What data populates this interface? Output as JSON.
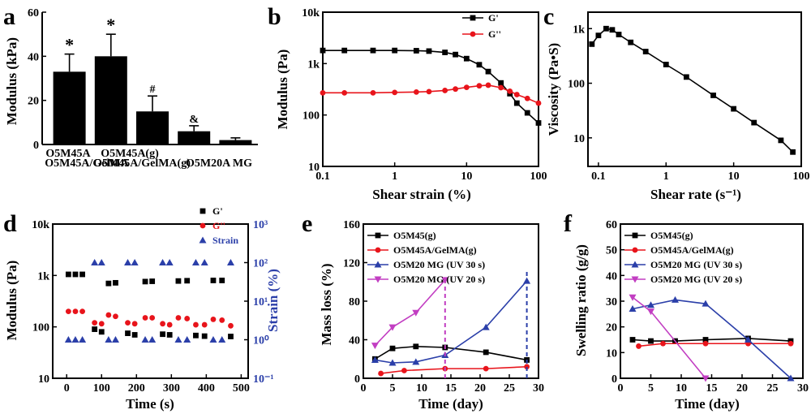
{
  "panels": {
    "a": {
      "label": "a",
      "ylabel": "Modulus (kPa)"
    },
    "b": {
      "label": "b",
      "ylabel": "Modulus (Pa)",
      "xlabel": "Shear strain (%)"
    },
    "c": {
      "label": "c",
      "ylabel": "Viscosity (Pa•S)",
      "xlabel": "Shear rate (s⁻¹)"
    },
    "d": {
      "label": "d",
      "ylabel": "Modulus (Pa)",
      "y2label": "Strain (%)",
      "xlabel": "Time (s)"
    },
    "e": {
      "label": "e",
      "ylabel": "Mass loss (%)",
      "xlabel": "Time (day)"
    },
    "f": {
      "label": "f",
      "ylabel": "Swelling ratio (g/g)",
      "xlabel": "Time (day)"
    }
  },
  "chart_data": [
    {
      "panel": "a",
      "type": "bar",
      "categories": [
        "O5M45A",
        "O5M45A/GelMA",
        "O5M45A(g)",
        "O5M45A/GelMA(g)",
        "O5M20A MG"
      ],
      "values": [
        33,
        40,
        15,
        6,
        2
      ],
      "errors": [
        8,
        10,
        7,
        2.5,
        1
      ],
      "annotations": [
        "*",
        "*",
        "#",
        "&",
        ""
      ],
      "ylim": [
        0,
        60
      ],
      "yticks": [
        0,
        20,
        40,
        60
      ],
      "ylabel": "Modulus (kPa)",
      "color": "#000000"
    },
    {
      "panel": "b",
      "type": "line",
      "xscale": "log",
      "yscale": "log",
      "xlim": [
        0.1,
        100
      ],
      "ylim": [
        10,
        10000
      ],
      "xticks": [
        "0.1",
        "1",
        "10",
        "100"
      ],
      "yticks": [
        "10",
        "100",
        "1k",
        "10k"
      ],
      "xlabel": "Shear strain (%)",
      "ylabel": "Modulus (Pa)",
      "legend": "top-right",
      "series": [
        {
          "name": "G'",
          "color": "#000000",
          "marker": "square",
          "x": [
            0.1,
            0.2,
            0.5,
            1,
            2,
            3,
            5,
            7,
            10,
            15,
            20,
            30,
            40,
            50,
            70,
            100
          ],
          "y": [
            1800,
            1800,
            1800,
            1800,
            1780,
            1750,
            1650,
            1500,
            1250,
            950,
            700,
            420,
            260,
            170,
            110,
            70
          ]
        },
        {
          "name": "G''",
          "color": "#e8141b",
          "marker": "circle",
          "x": [
            0.1,
            0.2,
            0.5,
            1,
            2,
            3,
            5,
            7,
            10,
            15,
            20,
            30,
            40,
            50,
            70,
            100
          ],
          "y": [
            270,
            270,
            270,
            275,
            280,
            285,
            300,
            320,
            345,
            370,
            380,
            340,
            290,
            250,
            210,
            170
          ]
        }
      ]
    },
    {
      "panel": "c",
      "type": "line",
      "xscale": "log",
      "yscale": "log",
      "xlim": [
        0.07,
        100
      ],
      "ylim": [
        3,
        2000
      ],
      "xticks": [
        "0.1",
        "1",
        "10",
        "100"
      ],
      "yticks": [
        "10",
        "100",
        "1k"
      ],
      "xlabel": "Shear rate (s⁻¹)",
      "ylabel": "Viscosity (Pa•S)",
      "series": [
        {
          "name": "",
          "color": "#000000",
          "marker": "square",
          "x": [
            0.08,
            0.1,
            0.13,
            0.16,
            0.2,
            0.3,
            0.5,
            1,
            2,
            5,
            10,
            20,
            50,
            75
          ],
          "y": [
            520,
            750,
            1000,
            950,
            780,
            560,
            380,
            220,
            130,
            60,
            34,
            19,
            9,
            5.5
          ]
        }
      ]
    },
    {
      "panel": "d",
      "type": "scatter",
      "yscale": "log",
      "xlim": [
        -40,
        520
      ],
      "ylim": [
        10,
        10000
      ],
      "y2lim": [
        0.1,
        1000
      ],
      "xticks": [
        0,
        100,
        200,
        300,
        400,
        500
      ],
      "yticks": [
        "10",
        "100",
        "1k",
        "10k"
      ],
      "y2ticks": [
        "10⁻¹",
        "10⁰",
        "10¹",
        "10²",
        "10³"
      ],
      "xlabel": "Time (s)",
      "ylabel": "Modulus (Pa)",
      "y2label": "Strain (%)",
      "legend": "top-right",
      "series": [
        {
          "name": "G'",
          "color": "#000000",
          "marker": "square",
          "x": [
            5,
            25,
            45,
            80,
            100,
            120,
            140,
            175,
            195,
            225,
            245,
            275,
            295,
            320,
            345,
            370,
            395,
            420,
            445,
            470
          ],
          "y": [
            1050,
            1050,
            1050,
            90,
            80,
            700,
            720,
            75,
            70,
            760,
            770,
            72,
            70,
            780,
            790,
            68,
            66,
            800,
            800,
            65
          ]
        },
        {
          "name": "G''",
          "color": "#e8141b",
          "marker": "circle",
          "x": [
            5,
            25,
            45,
            80,
            100,
            120,
            140,
            175,
            195,
            225,
            245,
            275,
            295,
            320,
            345,
            370,
            395,
            420,
            445,
            470
          ],
          "y": [
            200,
            200,
            200,
            120,
            115,
            170,
            160,
            120,
            115,
            150,
            150,
            115,
            110,
            150,
            145,
            110,
            110,
            140,
            135,
            105
          ]
        },
        {
          "name": "Strain",
          "color": "#2b3fa9",
          "marker": "triangle",
          "axis": "right",
          "x": [
            5,
            25,
            45,
            80,
            100,
            120,
            140,
            175,
            195,
            225,
            245,
            275,
            295,
            320,
            345,
            370,
            395,
            420,
            445,
            470
          ],
          "y": [
            1,
            1,
            1,
            100,
            100,
            1,
            1,
            100,
            100,
            1,
            1,
            100,
            100,
            1,
            1,
            100,
            100,
            1,
            1,
            100
          ]
        }
      ]
    },
    {
      "panel": "e",
      "type": "line",
      "xlim": [
        0,
        30
      ],
      "ylim": [
        0,
        160
      ],
      "xticks": [
        0,
        5,
        10,
        15,
        20,
        25,
        30
      ],
      "yticks": [
        0,
        40,
        80,
        120,
        160
      ],
      "xlabel": "Time (day)",
      "ylabel": "Mass loss (%)",
      "legend": "top-left",
      "series": [
        {
          "name": "O5M45(g)",
          "color": "#000000",
          "marker": "square",
          "x": [
            2,
            5,
            9,
            14,
            21,
            28
          ],
          "y": [
            20,
            31,
            33,
            32,
            27,
            19
          ]
        },
        {
          "name": "O5M45A/GelMA(g)",
          "color": "#e8141b",
          "marker": "circle",
          "x": [
            3,
            7,
            14,
            21,
            28
          ],
          "y": [
            5,
            8,
            10,
            10,
            12
          ]
        },
        {
          "name": "O5M20 MG (UV 30 s)",
          "color": "#2b3fa9",
          "marker": "triangle",
          "x": [
            2,
            5,
            9,
            14,
            21,
            28
          ],
          "y": [
            19,
            16,
            17,
            24,
            53,
            101
          ]
        },
        {
          "name": "O5M20 MG (UV 20 s)",
          "color": "#c23ec2",
          "marker": "triangle-down",
          "x": [
            2,
            5,
            9,
            14
          ],
          "y": [
            34,
            53,
            68,
            102
          ]
        }
      ]
    },
    {
      "panel": "f",
      "type": "line",
      "xlim": [
        0,
        30
      ],
      "ylim": [
        0,
        60
      ],
      "xticks": [
        0,
        5,
        10,
        15,
        20,
        25,
        30
      ],
      "yticks": [
        0,
        10,
        20,
        30,
        40,
        50,
        60
      ],
      "xlabel": "Time (day)",
      "ylabel": "Swelling ratio (g/g)",
      "legend": "top-left",
      "series": [
        {
          "name": "O5M45(g)",
          "color": "#000000",
          "marker": "square",
          "x": [
            2,
            5,
            9,
            14,
            21,
            28
          ],
          "y": [
            15,
            14.5,
            14.5,
            15,
            15.5,
            14.5
          ]
        },
        {
          "name": "O5M45A/GelMA(g)",
          "color": "#e8141b",
          "marker": "circle",
          "x": [
            3,
            7,
            14,
            21,
            28
          ],
          "y": [
            12.5,
            13.5,
            13.5,
            13.5,
            13.5
          ]
        },
        {
          "name": "O5M20 MG (UV 30 s)",
          "color": "#2b3fa9",
          "marker": "triangle",
          "x": [
            2,
            5,
            9,
            14,
            21,
            28
          ],
          "y": [
            27,
            28.5,
            30.5,
            29,
            15,
            0
          ]
        },
        {
          "name": "O5M20 MG (UV 20 s)",
          "color": "#c23ec2",
          "marker": "triangle-down",
          "x": [
            2,
            5,
            14
          ],
          "y": [
            31.5,
            26,
            0
          ]
        }
      ]
    }
  ]
}
